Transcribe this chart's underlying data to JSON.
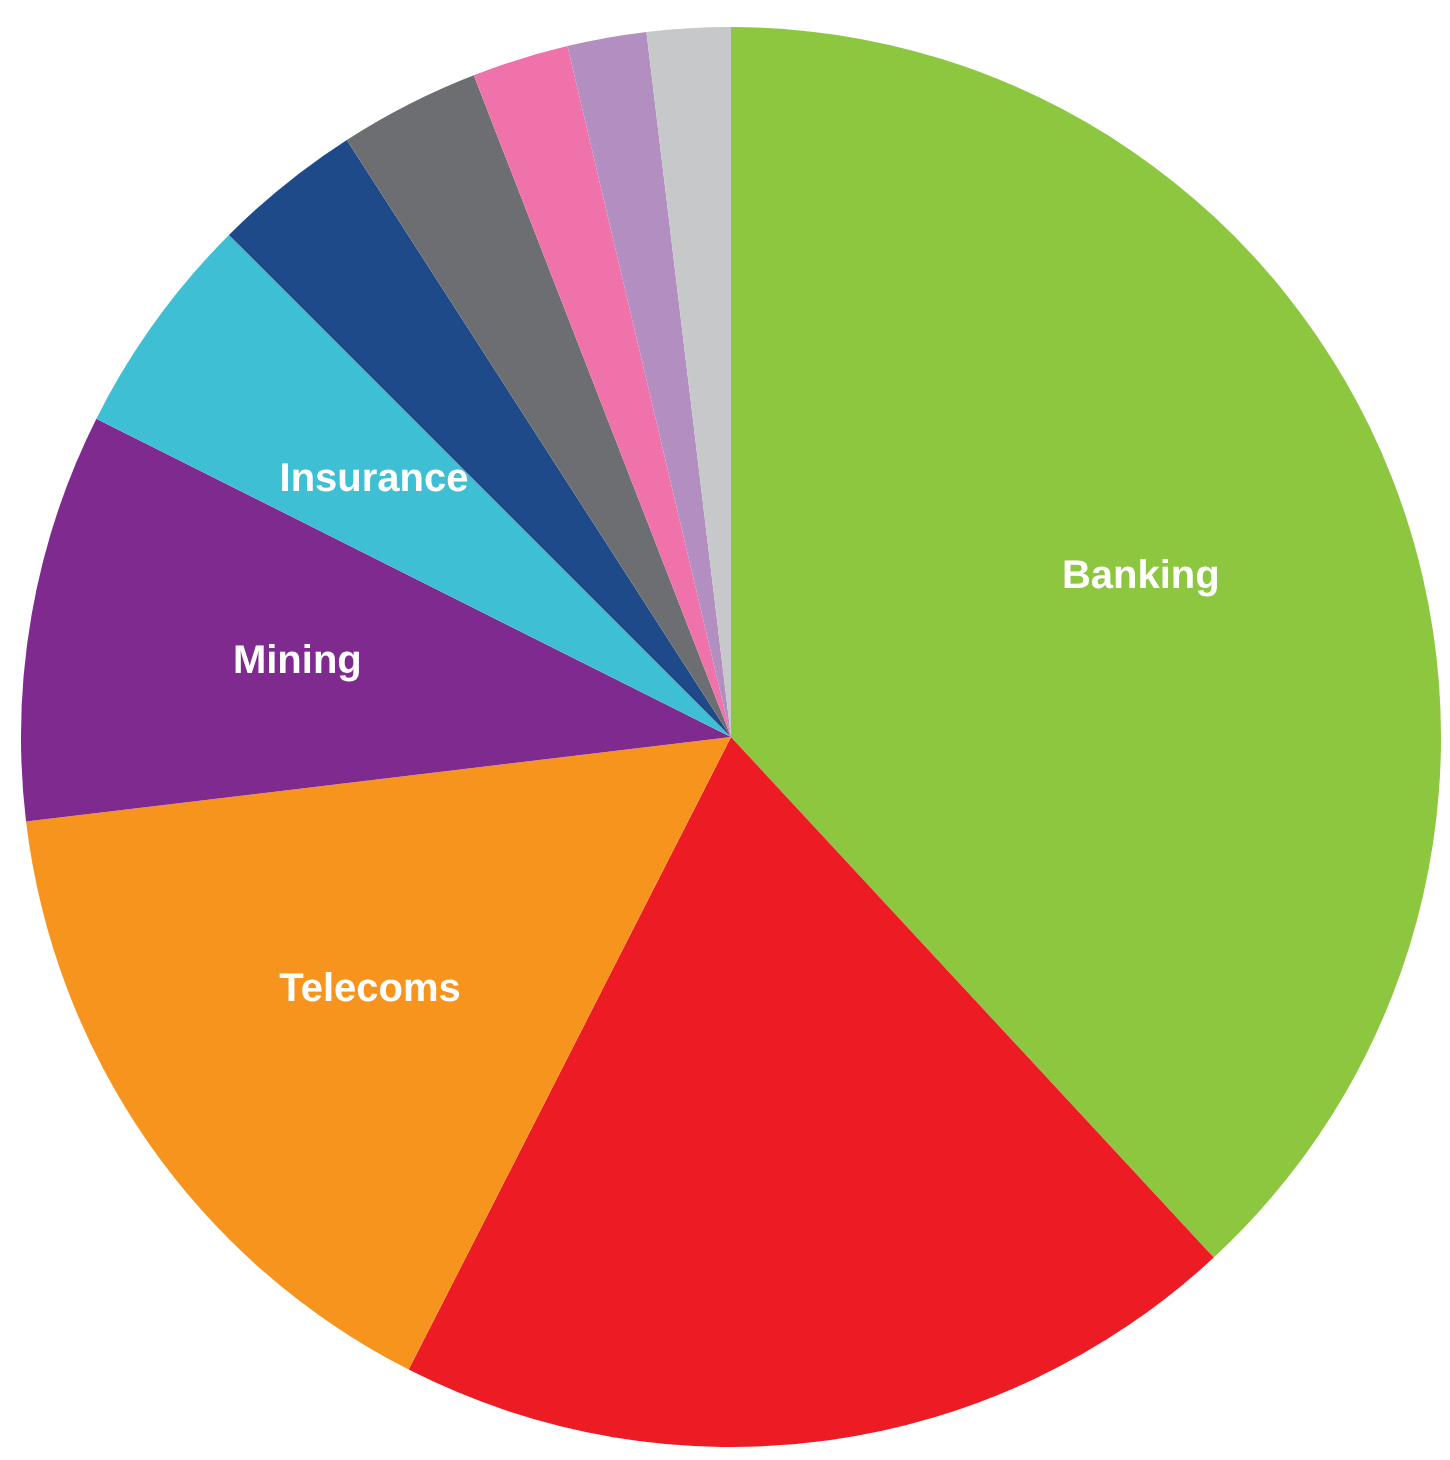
{
  "chart_data": {
    "type": "pie",
    "categories": [
      "Banking",
      null,
      "Telecoms",
      "Mining",
      "Insurance",
      null,
      null,
      null,
      null,
      null
    ],
    "values": [
      38.1,
      19.4,
      15.6,
      9.3,
      5.1,
      3.4,
      3.2,
      2.2,
      1.8,
      1.9
    ],
    "colors": [
      "#8dc63f",
      "#ed1c24",
      "#f7941d",
      "#7f2a8e",
      "#3fbfd4",
      "#1f4a8a",
      "#6d6e71",
      "#ef72aa",
      "#b38ec0",
      "#c7c8ca"
    ]
  }
}
